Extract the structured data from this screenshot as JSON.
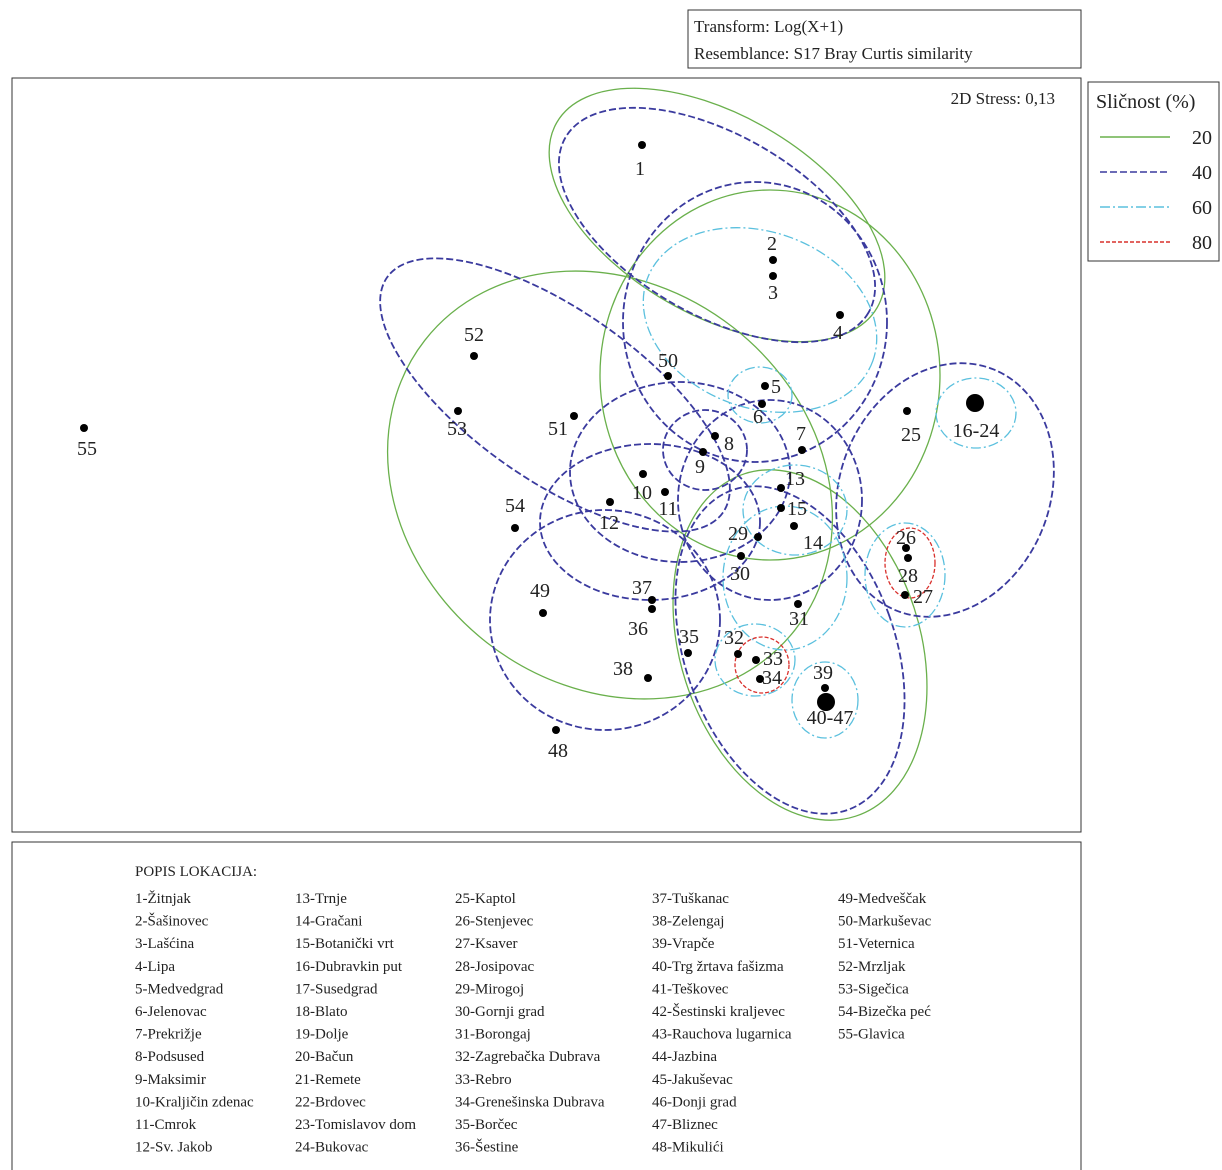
{
  "header": {
    "transform": "Transform: Log(X+1)",
    "resemblance": "Resemblance: S17 Bray Curtis similarity"
  },
  "stress": "2D Stress: 0,13",
  "legend": {
    "title": "Sličnost (%)",
    "items": [
      {
        "label": "20",
        "color": "#6ab04c"
      },
      {
        "label": "40",
        "color": "#3a3a9e"
      },
      {
        "label": "60",
        "color": "#5bc0de"
      },
      {
        "label": "80",
        "color": "#d9302c"
      }
    ]
  },
  "points": [
    "1",
    "2",
    "3",
    "4",
    "5",
    "6",
    "7",
    "8",
    "9",
    "10",
    "11",
    "12",
    "13",
    "14",
    "15",
    "16-24",
    "25",
    "26",
    "27",
    "28",
    "29",
    "30",
    "31",
    "32",
    "33",
    "34",
    "35",
    "36",
    "37",
    "38",
    "39",
    "40-47",
    "48",
    "49",
    "50",
    "51",
    "52",
    "53",
    "54",
    "55"
  ],
  "locations": {
    "title": "POPIS LOKACIJA:",
    "items": [
      "1-Žitnjak",
      "2-Šašinovec",
      "3-Lašćina",
      "4-Lipa",
      "5-Medvedgrad",
      "6-Jelenovac",
      "7-Prekrižje",
      "8-Podsused",
      "9-Maksimir",
      "10-Kraljičin zdenac",
      "11-Cmrok",
      "12-Sv. Jakob",
      "13-Trnje",
      "14-Gračani",
      "15-Botanički vrt",
      "16-Dubravkin put",
      "17-Susedgrad",
      "18-Blato",
      "19-Dolje",
      "20-Bačun",
      "21-Remete",
      "22-Brdovec",
      "23-Tomislavov dom",
      "24-Bukovac",
      "25-Kaptol",
      "26-Stenjevec",
      "27-Ksaver",
      "28-Josipovac",
      "29-Mirogoj",
      "30-Gornji grad",
      "31-Borongaj",
      "32-Zagrebačka Dubrava",
      "33-Rebro",
      "34-Grenešinska Dubrava",
      "35-Borčec",
      "36-Šestine",
      "37-Tuškanac",
      "38-Zelengaj",
      "39-Vrapče",
      "40-Trg žrtava fašizma",
      "41-Teškovec",
      "42-Šestinski kraljevec",
      "43-Rauchova lugarnica",
      "44-Jazbina",
      "45-Jakuševac",
      "46-Donji grad",
      "47-Bliznec",
      "48-Mikulići",
      "49-Medveščak",
      "50-Markuševac",
      "51-Veternica",
      "52-Mrzljak",
      "53-Sigečica",
      "54-Bizečka peć",
      "55-Glavica"
    ]
  }
}
